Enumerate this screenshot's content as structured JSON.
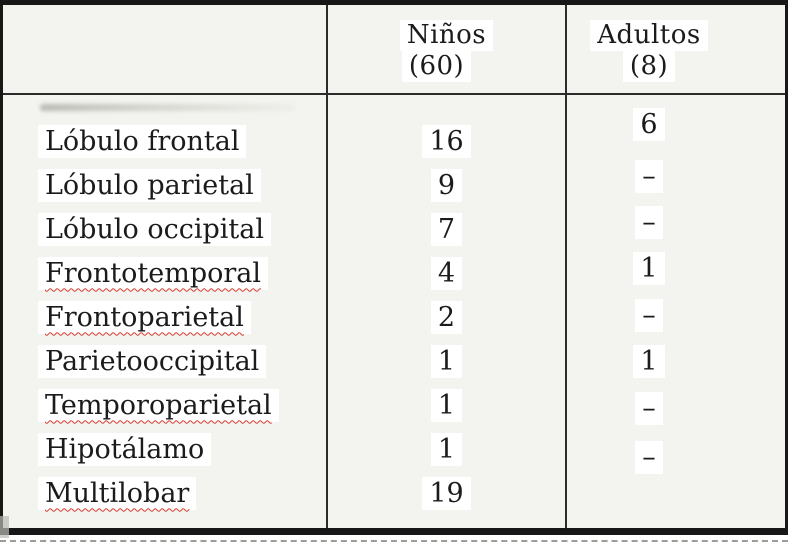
{
  "table": {
    "header": {
      "first_column": "",
      "ninos_line1": "Niños",
      "ninos_line2": "(60)",
      "adultos_line1": "Adultos",
      "adultos_line2": "(8)"
    },
    "rows": [
      {
        "label": "Lóbulo frontal",
        "ninos": "16",
        "adultos": "6",
        "misspelled": false
      },
      {
        "label": "Lóbulo parietal",
        "ninos": "9",
        "adultos": "–",
        "misspelled": false
      },
      {
        "label": "Lóbulo occipital",
        "ninos": "7",
        "adultos": "–",
        "misspelled": false
      },
      {
        "label": "Frontotemporal",
        "ninos": "4",
        "adultos": "1",
        "misspelled": true
      },
      {
        "label": "Frontoparietal",
        "ninos": "2",
        "adultos": "–",
        "misspelled": true
      },
      {
        "label": "Parietooccipital",
        "ninos": "1",
        "adultos": "1",
        "misspelled": false
      },
      {
        "label": "Temporoparietal",
        "ninos": "1",
        "adultos": "–",
        "misspelled": true
      },
      {
        "label": "Hipotálamo",
        "ninos": "1",
        "adultos": "–",
        "misspelled": false
      },
      {
        "label": "Multilobar",
        "ninos": "19",
        "adultos": "",
        "misspelled": true
      }
    ]
  },
  "colors": {
    "paper": "#f3f3ef",
    "border": "#171717",
    "text": "#1b1b1b",
    "spellcheck_squiggle": "#d83a2c",
    "text_highlight": "#ffffff"
  }
}
